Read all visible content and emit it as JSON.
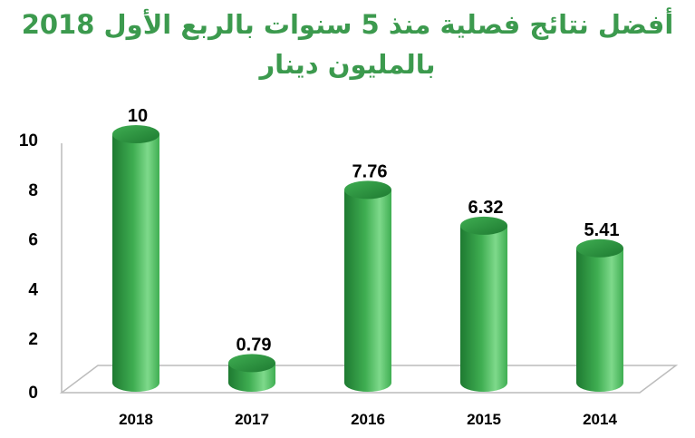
{
  "chart_data": {
    "type": "bar",
    "title_lines": [
      "أفضل نتائج فصلية منذ 5 سنوات بالربع الأول 2018",
      "بالمليون دينار"
    ],
    "categories": [
      "2018",
      "2017",
      "2016",
      "2015",
      "2014"
    ],
    "values": [
      10,
      0.79,
      7.76,
      6.32,
      5.41
    ],
    "data_labels": [
      "10",
      "0.79",
      "7.76",
      "6.32",
      "5.41"
    ],
    "y_ticks": [
      "0",
      "2",
      "4",
      "6",
      "8",
      "10"
    ],
    "ylim": [
      0,
      10
    ],
    "xlabel": "",
    "ylabel": "",
    "grid": false,
    "bar_style": "3d-cylinder",
    "colors": {
      "bar_dark": "#1e7a31",
      "bar_mid": "#3fae52",
      "bar_light": "#7ed98b",
      "title": "#3c9a4e",
      "axis": "#bcbcbc"
    }
  }
}
